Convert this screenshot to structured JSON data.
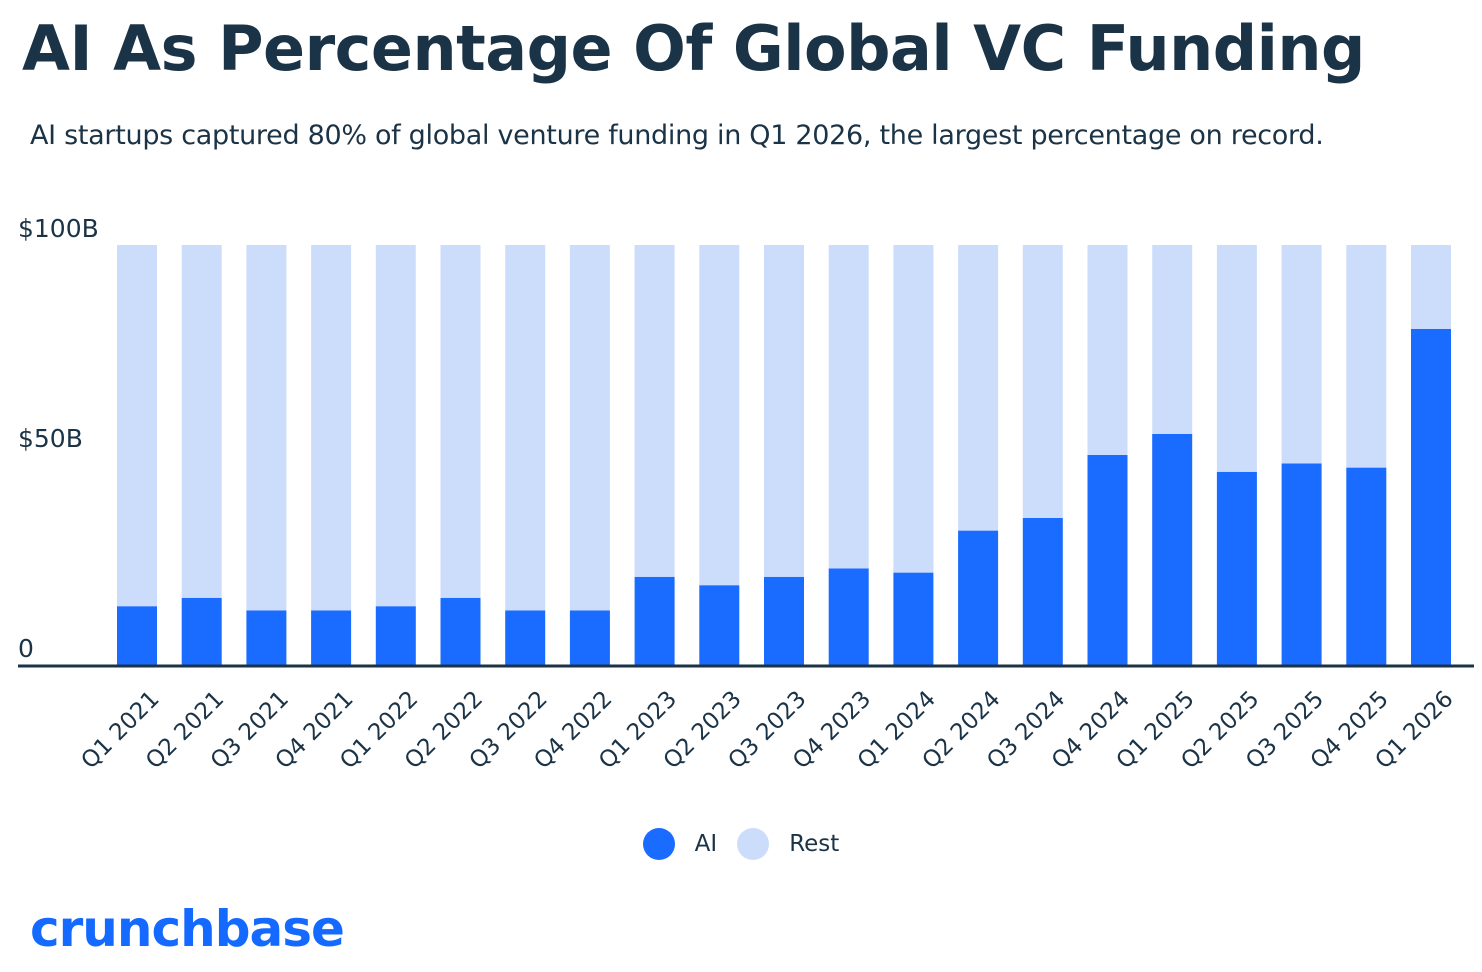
{
  "title": "AI As Percentage Of Global VC Funding",
  "subtitle": "AI startups captured 80% of global venture funding in Q1 2026, the largest percentage on record.",
  "brand": "crunchbase",
  "colors": {
    "ai": "#1a6bff",
    "rest": "#ccddfb",
    "text": "#1b3346",
    "axis": "#1b3346",
    "brand": "#146aff"
  },
  "chart_data": {
    "type": "bar",
    "stacked": true,
    "categories": [
      "Q1 2021",
      "Q2 2021",
      "Q3 2021",
      "Q4 2021",
      "Q1 2022",
      "Q2 2022",
      "Q3 2022",
      "Q4 2022",
      "Q1 2023",
      "Q2 2023",
      "Q3 2023",
      "Q4 2023",
      "Q1 2024",
      "Q2 2024",
      "Q3 2024",
      "Q4 2024",
      "Q1 2025",
      "Q2 2025",
      "Q3 2025",
      "Q4 2025",
      "Q1 2026"
    ],
    "series": [
      {
        "name": "AI",
        "values": [
          14,
          16,
          13,
          13,
          14,
          16,
          13,
          13,
          21,
          19,
          21,
          23,
          22,
          32,
          35,
          50,
          55,
          46,
          48,
          47,
          80
        ]
      },
      {
        "name": "Rest",
        "values": [
          86,
          84,
          87,
          87,
          86,
          84,
          87,
          87,
          79,
          81,
          79,
          77,
          78,
          68,
          65,
          50,
          45,
          54,
          52,
          53,
          20
        ]
      }
    ],
    "ylim": [
      0,
      100
    ],
    "yticks": [
      0,
      50,
      100
    ],
    "ytick_labels": [
      "0",
      "$50B",
      "$100B"
    ],
    "legend": {
      "position": "bottom-center",
      "entries": [
        "AI",
        "Rest"
      ]
    },
    "grid": false
  }
}
